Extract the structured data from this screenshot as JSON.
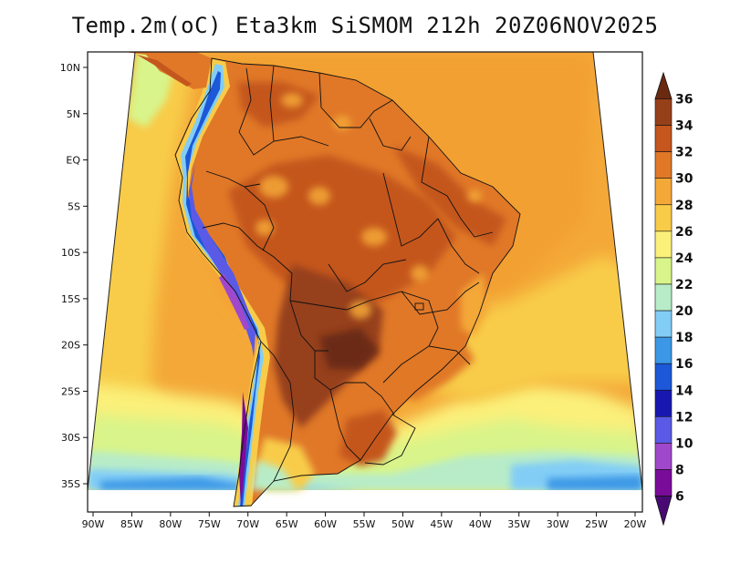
{
  "title": "Temp.2m(oC) Eta3km SiSMOM 212h 20Z06NOV2025",
  "map": {
    "region": "South America",
    "variable": "2 m temperature",
    "units": "oC",
    "lon_range": [
      -91,
      -20
    ],
    "lat_range": [
      -38,
      12
    ],
    "lon_ticks": [
      "90W",
      "85W",
      "80W",
      "75W",
      "70W",
      "65W",
      "60W",
      "55W",
      "50W",
      "45W",
      "40W",
      "35W",
      "30W",
      "25W",
      "20W"
    ],
    "lat_ticks": [
      "10N",
      "5N",
      "EQ",
      "5S",
      "10S",
      "15S",
      "20S",
      "25S",
      "30S",
      "35S"
    ]
  },
  "colorbar": {
    "levels": [
      "36",
      "34",
      "32",
      "30",
      "28",
      "26",
      "24",
      "22",
      "20",
      "18",
      "16",
      "14",
      "12",
      "10",
      "8",
      "6"
    ],
    "colors": [
      "#6a2a12",
      "#96401a",
      "#c4561e",
      "#e07828",
      "#f4a838",
      "#f8cc48",
      "#fbf07a",
      "#d8f48a",
      "#b8ecc8",
      "#82cdf6",
      "#3c98e6",
      "#1c58d8",
      "#1818b0",
      "#5a5ae6",
      "#a048cc",
      "#7a0c9a",
      "#480a72"
    ]
  }
}
